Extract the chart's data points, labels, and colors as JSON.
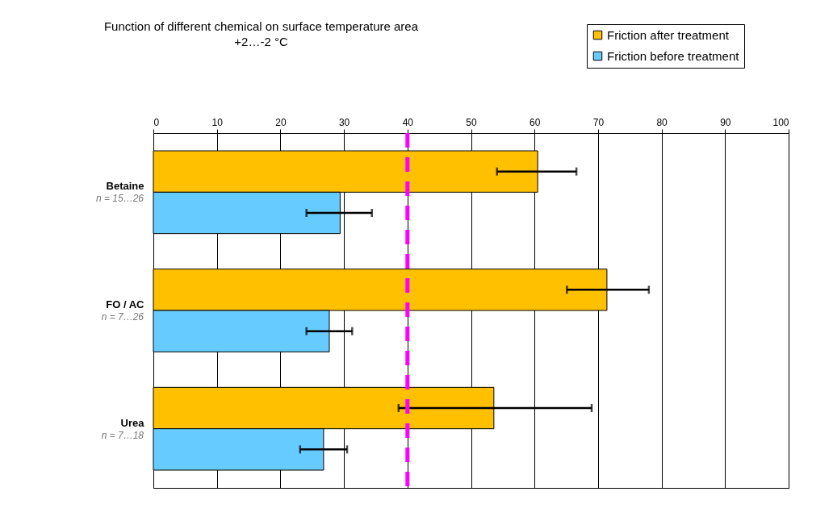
{
  "chart_data": {
    "type": "bar",
    "orientation": "horizontal",
    "title": "Function of different chemical on surface temperature area",
    "subtitle": "+2…-2 °C",
    "categories": [
      "Betaine",
      "FO / AC",
      "Urea"
    ],
    "series": [
      {
        "name": "Friction after treatment",
        "color": "#ffc000",
        "values": [
          60.5,
          71.4,
          53.6
        ],
        "errors": [
          [
            54.1,
            66.6
          ],
          [
            65.1,
            78
          ],
          [
            38.6,
            69
          ]
        ]
      },
      {
        "name": "Friction before treatment",
        "color": "#66ccff",
        "values": [
          29.4,
          27.7,
          26.8
        ],
        "errors": [
          [
            24.1,
            34.4
          ],
          [
            24.1,
            31.3
          ],
          [
            23.1,
            30.5
          ]
        ]
      }
    ],
    "annotations": [
      "n = 15…26",
      "n = 7…26",
      "n = 7…18"
    ],
    "xlim": [
      0,
      100
    ],
    "xticks": [
      0,
      10,
      20,
      30,
      40,
      50,
      60,
      70,
      80,
      90,
      100
    ],
    "grid": "x",
    "legend": "top right",
    "ref_lines": [
      {
        "axis": "x",
        "value": 40,
        "color": "#ff00ff",
        "line_style": "dashed"
      }
    ]
  }
}
